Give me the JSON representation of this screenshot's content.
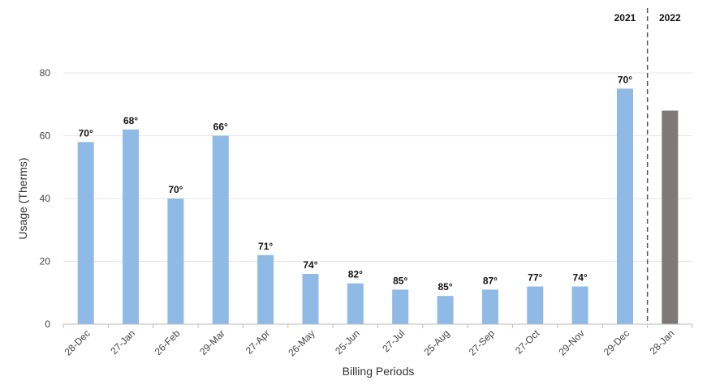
{
  "chart_data": {
    "type": "bar",
    "xlabel": "Billing Periods",
    "ylabel": "Usage (Therms)",
    "ylim": [
      0,
      80
    ],
    "yticks": [
      0,
      20,
      40,
      60,
      80
    ],
    "grid": true,
    "categories": [
      "28-Dec",
      "27-Jan",
      "26-Feb",
      "29-Mar",
      "27-Apr",
      "26-May",
      "25-Jun",
      "27-Jul",
      "25-Aug",
      "27-Sep",
      "27-Oct",
      "29-Nov",
      "29-Dec",
      "28-Jan"
    ],
    "values": [
      58,
      62,
      40,
      60,
      22,
      16,
      13,
      11,
      9,
      11,
      12,
      12,
      75,
      68
    ],
    "labels": [
      "70°",
      "68°",
      "70°",
      "66°",
      "71°",
      "74°",
      "82°",
      "85°",
      "85°",
      "87°",
      "77°",
      "74°",
      "70°",
      ""
    ],
    "bar_colors": [
      "#8fbae6",
      "#8fbae6",
      "#8fbae6",
      "#8fbae6",
      "#8fbae6",
      "#8fbae6",
      "#8fbae6",
      "#8fbae6",
      "#8fbae6",
      "#8fbae6",
      "#8fbae6",
      "#8fbae6",
      "#8fbae6",
      "#7d7979"
    ],
    "year_divider": {
      "after_index": 12,
      "left_label": "2021",
      "right_label": "2022"
    }
  }
}
